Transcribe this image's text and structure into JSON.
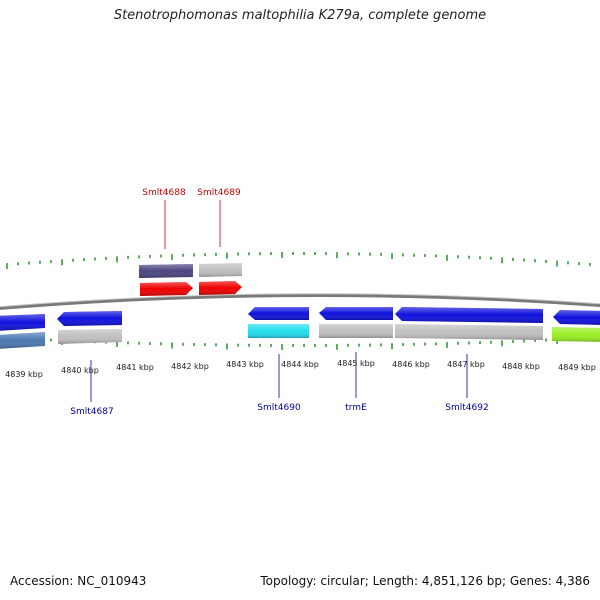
{
  "title": "Stenotrophomonas maltophilia K279a, complete genome",
  "accession_label": "Accession: NC_010943",
  "summary": "Topology: circular; Length: 4,851,126 bp; Genes: 4,386",
  "scale": {
    "labels": [
      "4839 kbp",
      "4840 kbp",
      "4841 kbp",
      "4842 kbp",
      "4843 kbp",
      "4844 kbp",
      "4845 kbp",
      "4846 kbp",
      "4847 kbp",
      "4848 kbp",
      "4849 kbp"
    ]
  },
  "gene_labels": {
    "forward_color": "#cc0000",
    "reverse_color": "#000099",
    "top": [
      "Smlt4688",
      "Smlt4689"
    ],
    "bottom": [
      "Smlt4687",
      "Smlt4690",
      "trmE",
      "Smlt4692"
    ]
  },
  "colors": {
    "backbone": "#888888",
    "tick": "#1a8a1a",
    "forward_cds": "#ee0000",
    "reverse_cds": "#1010dd",
    "steelblue": "#4a78b0",
    "slate": "#4b4580",
    "cyan": "#22ddee",
    "grey": "#bfbfbf",
    "lime": "#99ee22"
  }
}
